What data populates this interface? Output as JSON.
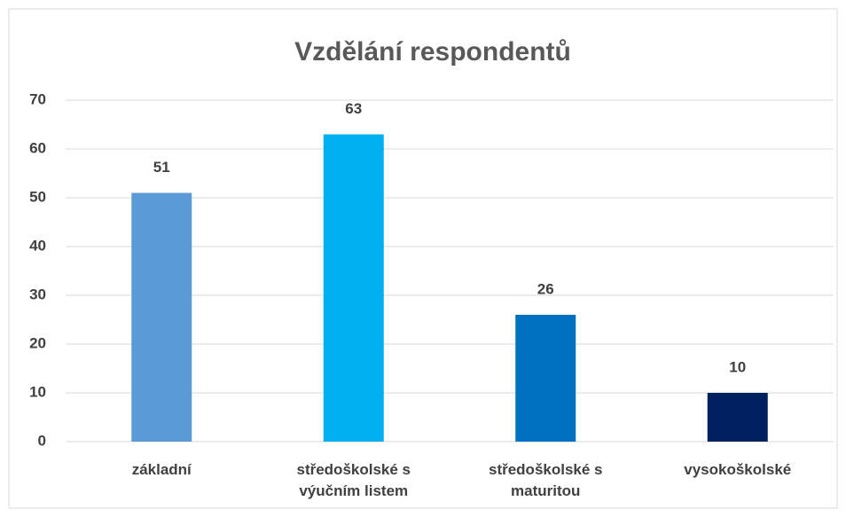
{
  "chart_data": {
    "type": "bar",
    "title": "Vzdělání respondentů",
    "categories": [
      "základní",
      "středoškolské s výučním listem",
      "středoškolské s maturitou",
      "vysokoškolské"
    ],
    "values": [
      51,
      63,
      26,
      10
    ],
    "colors": [
      "#5b9bd5",
      "#00b0f0",
      "#0070c0",
      "#002060"
    ],
    "ylim": [
      0,
      70
    ],
    "yticks": [
      0,
      10,
      20,
      30,
      40,
      50,
      60,
      70
    ],
    "grid": true
  }
}
